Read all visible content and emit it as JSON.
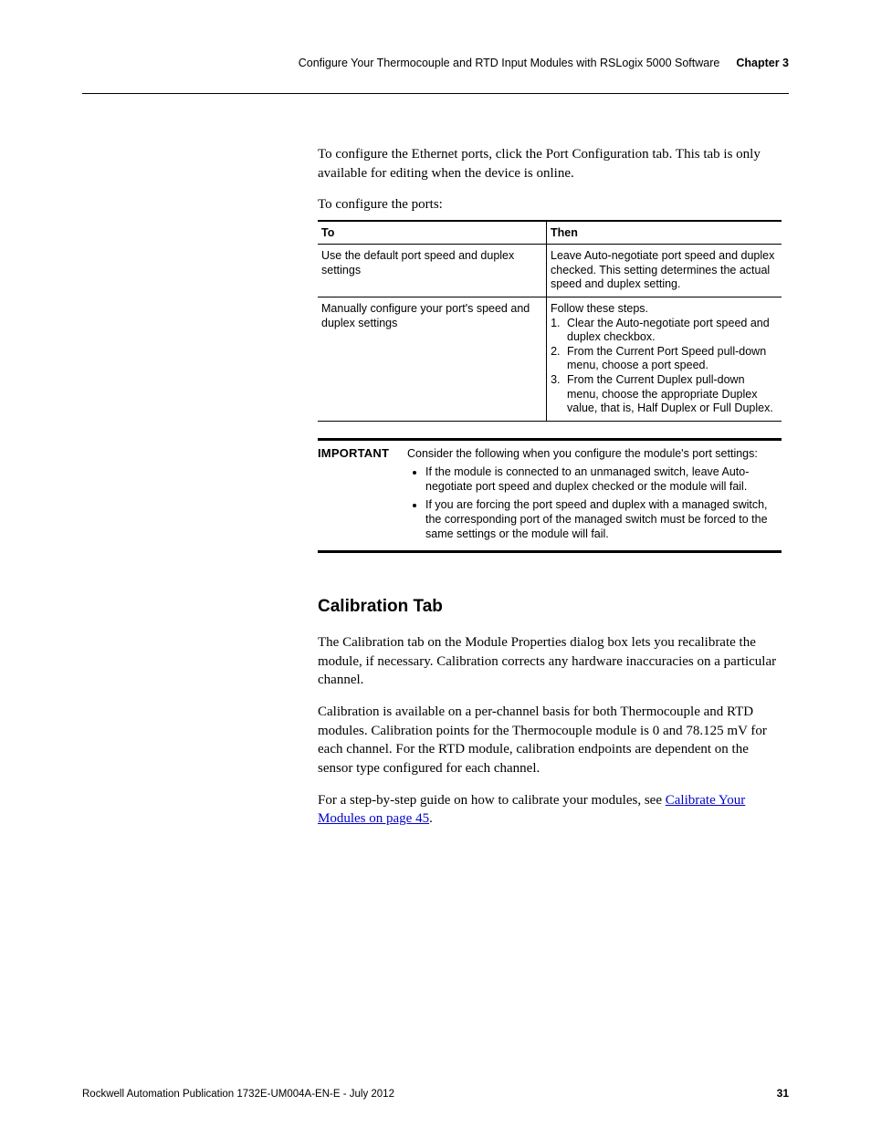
{
  "header": {
    "title": "Configure Your Thermocouple and RTD Input Modules with RSLogix 5000 Software",
    "chapter": "Chapter 3"
  },
  "intro": {
    "p1": "To configure the Ethernet ports, click the Port Configuration tab. This tab is only available for editing when the device is online.",
    "p2": "To configure the ports:"
  },
  "table": {
    "col_to": "To",
    "col_then": "Then",
    "row1": {
      "to": "Use the default port speed and duplex settings",
      "then": "Leave Auto-negotiate port speed and duplex checked. This setting determines the actual speed and duplex setting."
    },
    "row2": {
      "to": "Manually configure your port's speed and duplex settings",
      "then_lead": "Follow these steps.",
      "s1": "Clear the Auto-negotiate port speed and duplex checkbox.",
      "s2": "From the Current Port Speed pull-down menu, choose a port speed.",
      "s3": "From the Current Duplex pull-down menu, choose the appropriate Duplex value, that is, Half Duplex or Full Duplex."
    }
  },
  "important": {
    "label": "IMPORTANT",
    "lead": "Consider the following when you configure the module's port settings:",
    "b1": "If the module is connected to an unmanaged switch, leave Auto-negotiate port speed and duplex checked or the module will fail.",
    "b2": "If you are forcing the port speed and duplex with a managed switch, the corresponding port of the managed switch must be forced to the same settings or the module will fail."
  },
  "calibration": {
    "heading": "Calibration Tab",
    "p1": "The Calibration tab on the Module Properties dialog box lets you recalibrate the module, if necessary. Calibration corrects any hardware inaccuracies on a particular channel.",
    "p2": "Calibration is available on a per-channel basis for both Thermocouple and RTD modules. Calibration points for the Thermocouple module is 0 and 78.125 mV for each channel. For the RTD module, calibration endpoints are dependent on the sensor type configured for each channel.",
    "p3_pre": "For a step-by-step guide on how to calibrate your modules, see ",
    "p3_link": "Calibrate Your Modules on page 45",
    "p3_post": "."
  },
  "footer": {
    "pub": "Rockwell Automation Publication 1732E-UM004A-EN-E - July 2012",
    "page": "31"
  }
}
